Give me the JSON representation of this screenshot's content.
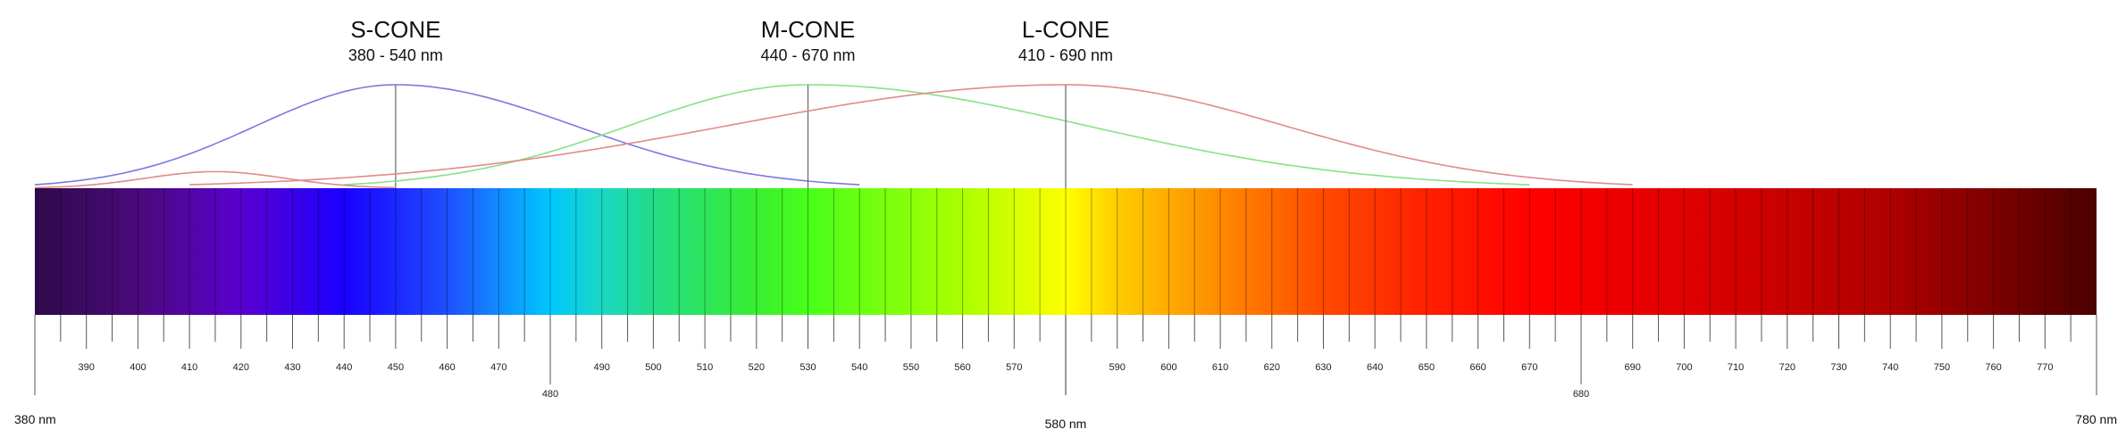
{
  "chart_data": {
    "type": "diagram",
    "xlim": [
      380,
      780
    ],
    "units": "nm",
    "cones": [
      {
        "name": "S-CONE",
        "range_label": "380 - 540 nm",
        "start": 380,
        "end": 540,
        "peak": 450,
        "color": "#7a7adf",
        "secondary_bump": null
      },
      {
        "name": "M-CONE",
        "range_label": "440 - 670 nm",
        "start": 440,
        "end": 670,
        "peak": 530,
        "color": "#86e286",
        "secondary_bump": null
      },
      {
        "name": "L-CONE",
        "range_label": "410 - 690 nm",
        "start": 410,
        "end": 690,
        "peak": 580,
        "color": "#e28a8a",
        "secondary_bump": {
          "start": 380,
          "end": 450,
          "peak": 415,
          "relative_height": 0.16
        }
      }
    ],
    "spectrum_stops": [
      {
        "nm": 380,
        "color": "#2e0a4a"
      },
      {
        "nm": 400,
        "color": "#4a0a7a"
      },
      {
        "nm": 420,
        "color": "#5a00d0"
      },
      {
        "nm": 440,
        "color": "#1a00ff"
      },
      {
        "nm": 460,
        "color": "#1f4fff"
      },
      {
        "nm": 480,
        "color": "#00c8ff"
      },
      {
        "nm": 490,
        "color": "#1ad8c4"
      },
      {
        "nm": 500,
        "color": "#22dc88"
      },
      {
        "nm": 520,
        "color": "#3aee30"
      },
      {
        "nm": 530,
        "color": "#48ff1a"
      },
      {
        "nm": 560,
        "color": "#aaff00"
      },
      {
        "nm": 580,
        "color": "#ffff00"
      },
      {
        "nm": 590,
        "color": "#ffcc00"
      },
      {
        "nm": 610,
        "color": "#ff8a00"
      },
      {
        "nm": 630,
        "color": "#ff4a00"
      },
      {
        "nm": 650,
        "color": "#ff2000"
      },
      {
        "nm": 670,
        "color": "#ff0000"
      },
      {
        "nm": 700,
        "color": "#e00000"
      },
      {
        "nm": 740,
        "color": "#b00000"
      },
      {
        "nm": 780,
        "color": "#4a0000"
      }
    ],
    "tick_labels": [
      390,
      400,
      410,
      420,
      430,
      440,
      450,
      460,
      470,
      480,
      490,
      500,
      510,
      520,
      530,
      540,
      550,
      560,
      570,
      590,
      600,
      610,
      620,
      630,
      640,
      650,
      660,
      670,
      680,
      690,
      700,
      710,
      720,
      730,
      740,
      750,
      760,
      770
    ],
    "offset_ticks": [
      480,
      680
    ],
    "end_labels": {
      "left": "380 nm",
      "center": "580 nm",
      "right": "780 nm"
    },
    "center_value": 580
  }
}
